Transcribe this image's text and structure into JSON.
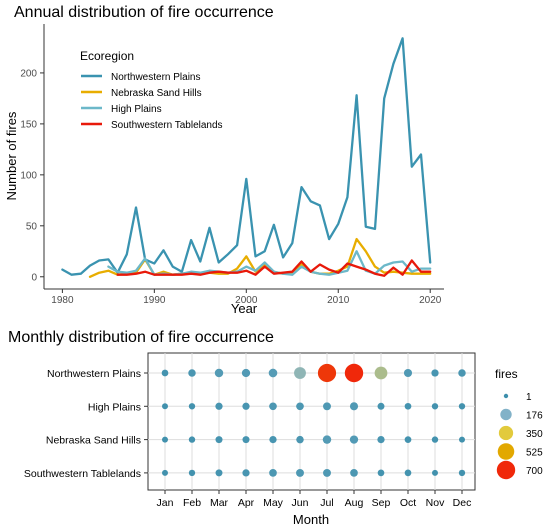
{
  "colors": {
    "Northwestern Plains": "#3a93b0",
    "Nebraska Sand Hills": "#e8ad00",
    "High Plains": "#6cb8c9",
    "Southwestern Tablelands": "#e8190a"
  },
  "chart_data": [
    {
      "type": "line",
      "title": "Annual distribution of fire occurrence",
      "xlabel": "Year",
      "ylabel": "Number of fires",
      "xlim": [
        1978,
        2021.5
      ],
      "ylim": [
        -12,
        248
      ],
      "xticks": [
        1980,
        1990,
        2000,
        2010,
        2020
      ],
      "yticks": [
        0,
        50,
        100,
        150,
        200
      ],
      "grid": false,
      "legend_title": "Ecoregion",
      "legend_position": "top-left",
      "series": [
        {
          "name": "Northwestern Plains",
          "x": [
            1980,
            1981,
            1982,
            1983,
            1984,
            1985,
            1986,
            1987,
            1988,
            1989,
            1990,
            1991,
            1992,
            1993,
            1994,
            1995,
            1996,
            1997,
            1998,
            1999,
            2000,
            2001,
            2002,
            2003,
            2004,
            2005,
            2006,
            2007,
            2008,
            2009,
            2010,
            2011,
            2012,
            2013,
            2014,
            2015,
            2016,
            2017,
            2018,
            2019,
            2020
          ],
          "y": [
            7,
            2,
            3,
            11,
            16,
            17,
            4,
            22,
            68,
            17,
            13,
            26,
            10,
            5,
            36,
            15,
            48,
            14,
            22,
            31,
            96,
            20,
            25,
            51,
            19,
            33,
            88,
            74,
            70,
            37,
            52,
            78,
            178,
            49,
            47,
            175,
            209,
            234,
            108,
            120,
            14
          ]
        },
        {
          "name": "Nebraska Sand Hills",
          "x": [
            1983,
            1984,
            1985,
            1986,
            1987,
            1988,
            1989,
            1990,
            1991,
            1992,
            1993,
            1994,
            1995,
            1996,
            1997,
            1998,
            1999,
            2000,
            2001,
            2002,
            2003,
            2004,
            2005,
            2006,
            2007,
            2008,
            2009,
            2010,
            2011,
            2012,
            2013,
            2014,
            2015,
            2016,
            2017,
            2018,
            2019,
            2020
          ],
          "y": [
            0,
            4,
            6,
            2,
            3,
            4,
            17,
            2,
            5,
            2,
            3,
            4,
            3,
            4,
            3,
            3,
            8,
            20,
            5,
            12,
            5,
            3,
            4,
            12,
            5,
            3,
            3,
            6,
            10,
            37,
            25,
            10,
            4,
            5,
            4,
            3,
            3,
            3
          ]
        },
        {
          "name": "High Plains",
          "x": [
            1985,
            1986,
            1987,
            1988,
            1989,
            1990,
            1991,
            1992,
            1993,
            1994,
            1995,
            1996,
            1997,
            1998,
            1999,
            2000,
            2001,
            2002,
            2003,
            2004,
            2005,
            2006,
            2007,
            2008,
            2009,
            2010,
            2011,
            2012,
            2013,
            2014,
            2015,
            2016,
            2017,
            2018,
            2019,
            2020
          ],
          "y": [
            10,
            5,
            4,
            6,
            18,
            2,
            3,
            2,
            3,
            5,
            4,
            6,
            5,
            4,
            5,
            10,
            6,
            14,
            5,
            3,
            2,
            10,
            5,
            3,
            2,
            4,
            6,
            25,
            6,
            3,
            11,
            14,
            15,
            5,
            8,
            8
          ]
        },
        {
          "name": "Southwestern Tablelands",
          "x": [
            1986,
            1987,
            1988,
            1989,
            1990,
            1991,
            1992,
            1993,
            1994,
            1995,
            1996,
            1997,
            1998,
            1999,
            2000,
            2001,
            2002,
            2003,
            2004,
            2005,
            2006,
            2007,
            2008,
            2009,
            2010,
            2011,
            2012,
            2013,
            2014,
            2015,
            2016,
            2017,
            2018,
            2019,
            2020
          ],
          "y": [
            2,
            2,
            3,
            5,
            2,
            2,
            2,
            2,
            3,
            2,
            4,
            5,
            4,
            4,
            6,
            2,
            10,
            3,
            4,
            5,
            15,
            5,
            12,
            7,
            4,
            13,
            10,
            7,
            3,
            1,
            9,
            2,
            16,
            5,
            5
          ]
        }
      ]
    },
    {
      "type": "scatter",
      "title": "Monthly distribution of fire occurrence",
      "xlabel": "Month",
      "ylabel": "",
      "categories_x": [
        "Jan",
        "Feb",
        "Mar",
        "Apr",
        "May",
        "Jun",
        "Jul",
        "Aug",
        "Sep",
        "Oct",
        "Nov",
        "Dec"
      ],
      "categories_y": [
        "Northwestern Plains",
        "High Plains",
        "Nebraska Sand Hills",
        "Southwestern Tablelands"
      ],
      "size_legend_title": "fires",
      "size_legend_values": [
        1,
        176,
        350,
        525,
        700
      ],
      "size_legend_position": "right",
      "grid": true,
      "values": {
        "Northwestern Plains": [
          20,
          35,
          60,
          55,
          65,
          200,
          680,
          700,
          250,
          50,
          30,
          35
        ],
        "High Plains": [
          10,
          15,
          30,
          30,
          40,
          40,
          45,
          50,
          25,
          20,
          15,
          15
        ],
        "Nebraska Sand Hills": [
          10,
          15,
          25,
          25,
          30,
          35,
          60,
          55,
          30,
          20,
          15,
          10
        ],
        "Southwestern Tablelands": [
          10,
          15,
          25,
          30,
          40,
          45,
          45,
          40,
          20,
          20,
          10,
          15
        ]
      }
    }
  ]
}
